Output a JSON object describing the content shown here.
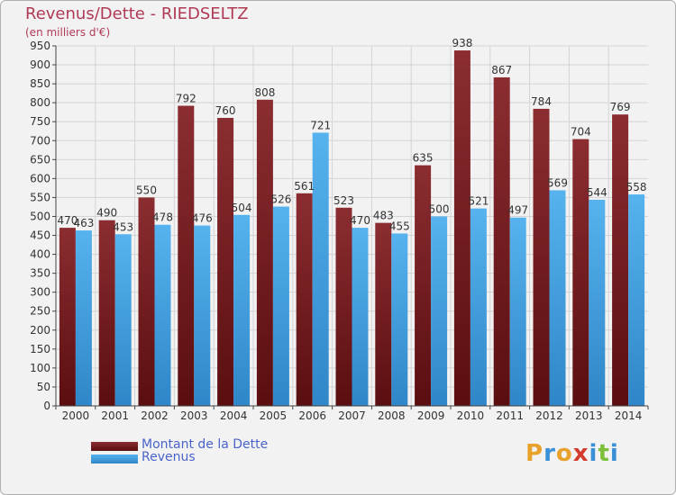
{
  "header": {
    "title": "Revenus/Dette - RIEDSELTZ",
    "subtitle": "(en milliers d'€)"
  },
  "chart_data": {
    "type": "bar",
    "categories": [
      "2000",
      "2001",
      "2002",
      "2003",
      "2004",
      "2005",
      "2006",
      "2007",
      "2008",
      "2009",
      "2010",
      "2011",
      "2012",
      "2013",
      "2014"
    ],
    "series": [
      {
        "name": "Montant de la Dette",
        "color": "#7a1e22",
        "values": [
          470,
          490,
          550,
          792,
          760,
          808,
          561,
          523,
          483,
          635,
          938,
          867,
          784,
          704,
          769
        ]
      },
      {
        "name": "Revenus",
        "color": "#3f9fe0",
        "values": [
          463,
          453,
          478,
          476,
          504,
          526,
          721,
          470,
          455,
          500,
          521,
          497,
          569,
          544,
          558
        ]
      }
    ],
    "ylim": [
      0,
      950
    ],
    "yticks": [
      0,
      50,
      100,
      150,
      200,
      250,
      300,
      350,
      400,
      450,
      500,
      550,
      600,
      650,
      700,
      750,
      800,
      850,
      900,
      950
    ],
    "grid": true,
    "legend_position": "bottom-left"
  },
  "legend": {
    "items": [
      {
        "label": "Montant de la Dette",
        "color": "#7a1e22"
      },
      {
        "label": "Revenus",
        "color": "#3f9fe0"
      }
    ]
  },
  "logo": {
    "letters": [
      "P",
      "r",
      "o",
      "x",
      "i",
      "t",
      "i"
    ],
    "colors": [
      "#e8a12b",
      "#3a8fd6",
      "#e8a12b",
      "#d43b2c",
      "#3a8fd6",
      "#7bbf3a",
      "#3a8fd6"
    ]
  }
}
